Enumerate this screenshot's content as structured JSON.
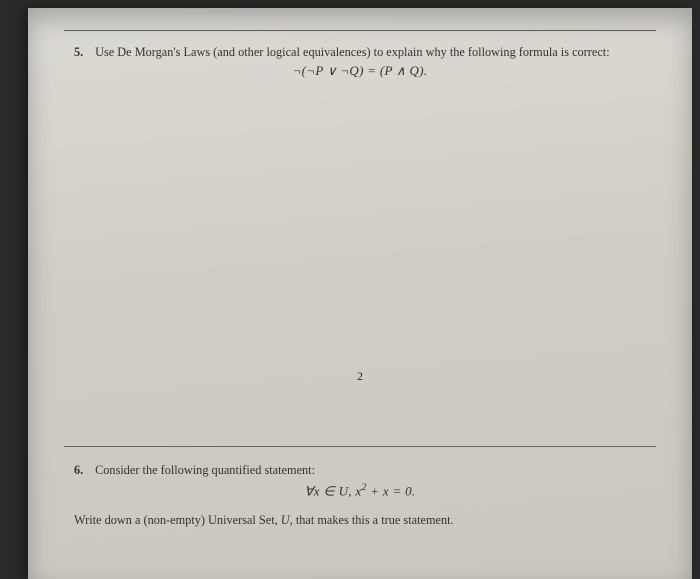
{
  "page": {
    "background_gradient": [
      "#dcdad4",
      "#d0cdc5",
      "#cbc8bf"
    ],
    "text_color": "#34322c",
    "rule_color": "#5a5850",
    "font_family": "Times New Roman",
    "base_fontsize_pt": 12.3,
    "page_number": "2"
  },
  "problem5": {
    "number": "5.",
    "prompt": "Use De Morgan's Laws (and other logical equivalences) to explain why the following formula is correct:",
    "formula_plain": "¬(¬P ∨ ¬Q) = (P ∧ Q).",
    "formula_fontsize_pt": 13
  },
  "problem6": {
    "number": "6.",
    "prompt": "Consider the following quantified statement:",
    "formula_plain": "∀x ∈ U, x² + x = 0.",
    "closing_html": "Write down a (non-empty) Universal Set, U, that makes this a true statement.",
    "formula_fontsize_pt": 13
  }
}
